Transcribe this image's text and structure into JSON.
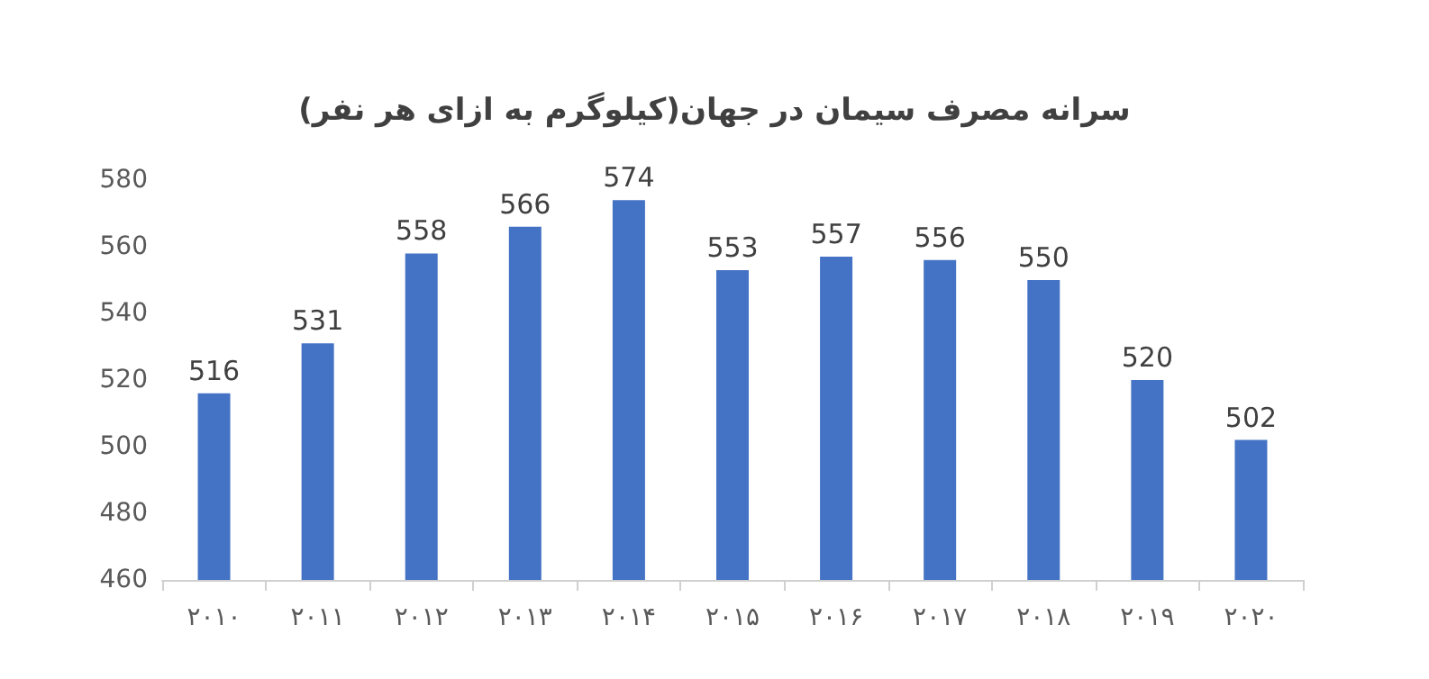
{
  "chart_data": {
    "type": "bar",
    "title": "سرانه مصرف سیمان در جهان(کیلوگرم به ازای هر نفر)",
    "categories": [
      "۲۰۱۰",
      "۲۰۱۱",
      "۲۰۱۲",
      "۲۰۱۳",
      "۲۰۱۴",
      "۲۰۱۵",
      "۲۰۱۶",
      "۲۰۱۷",
      "۲۰۱۸",
      "۲۰۱۹",
      "۲۰۲۰"
    ],
    "values": [
      516,
      531,
      558,
      566,
      574,
      553,
      557,
      556,
      550,
      520,
      502
    ],
    "color": "#4472c4",
    "ylim": [
      460,
      580
    ],
    "yticks": [
      460,
      480,
      500,
      520,
      540,
      560,
      580
    ],
    "data_labels": true
  }
}
